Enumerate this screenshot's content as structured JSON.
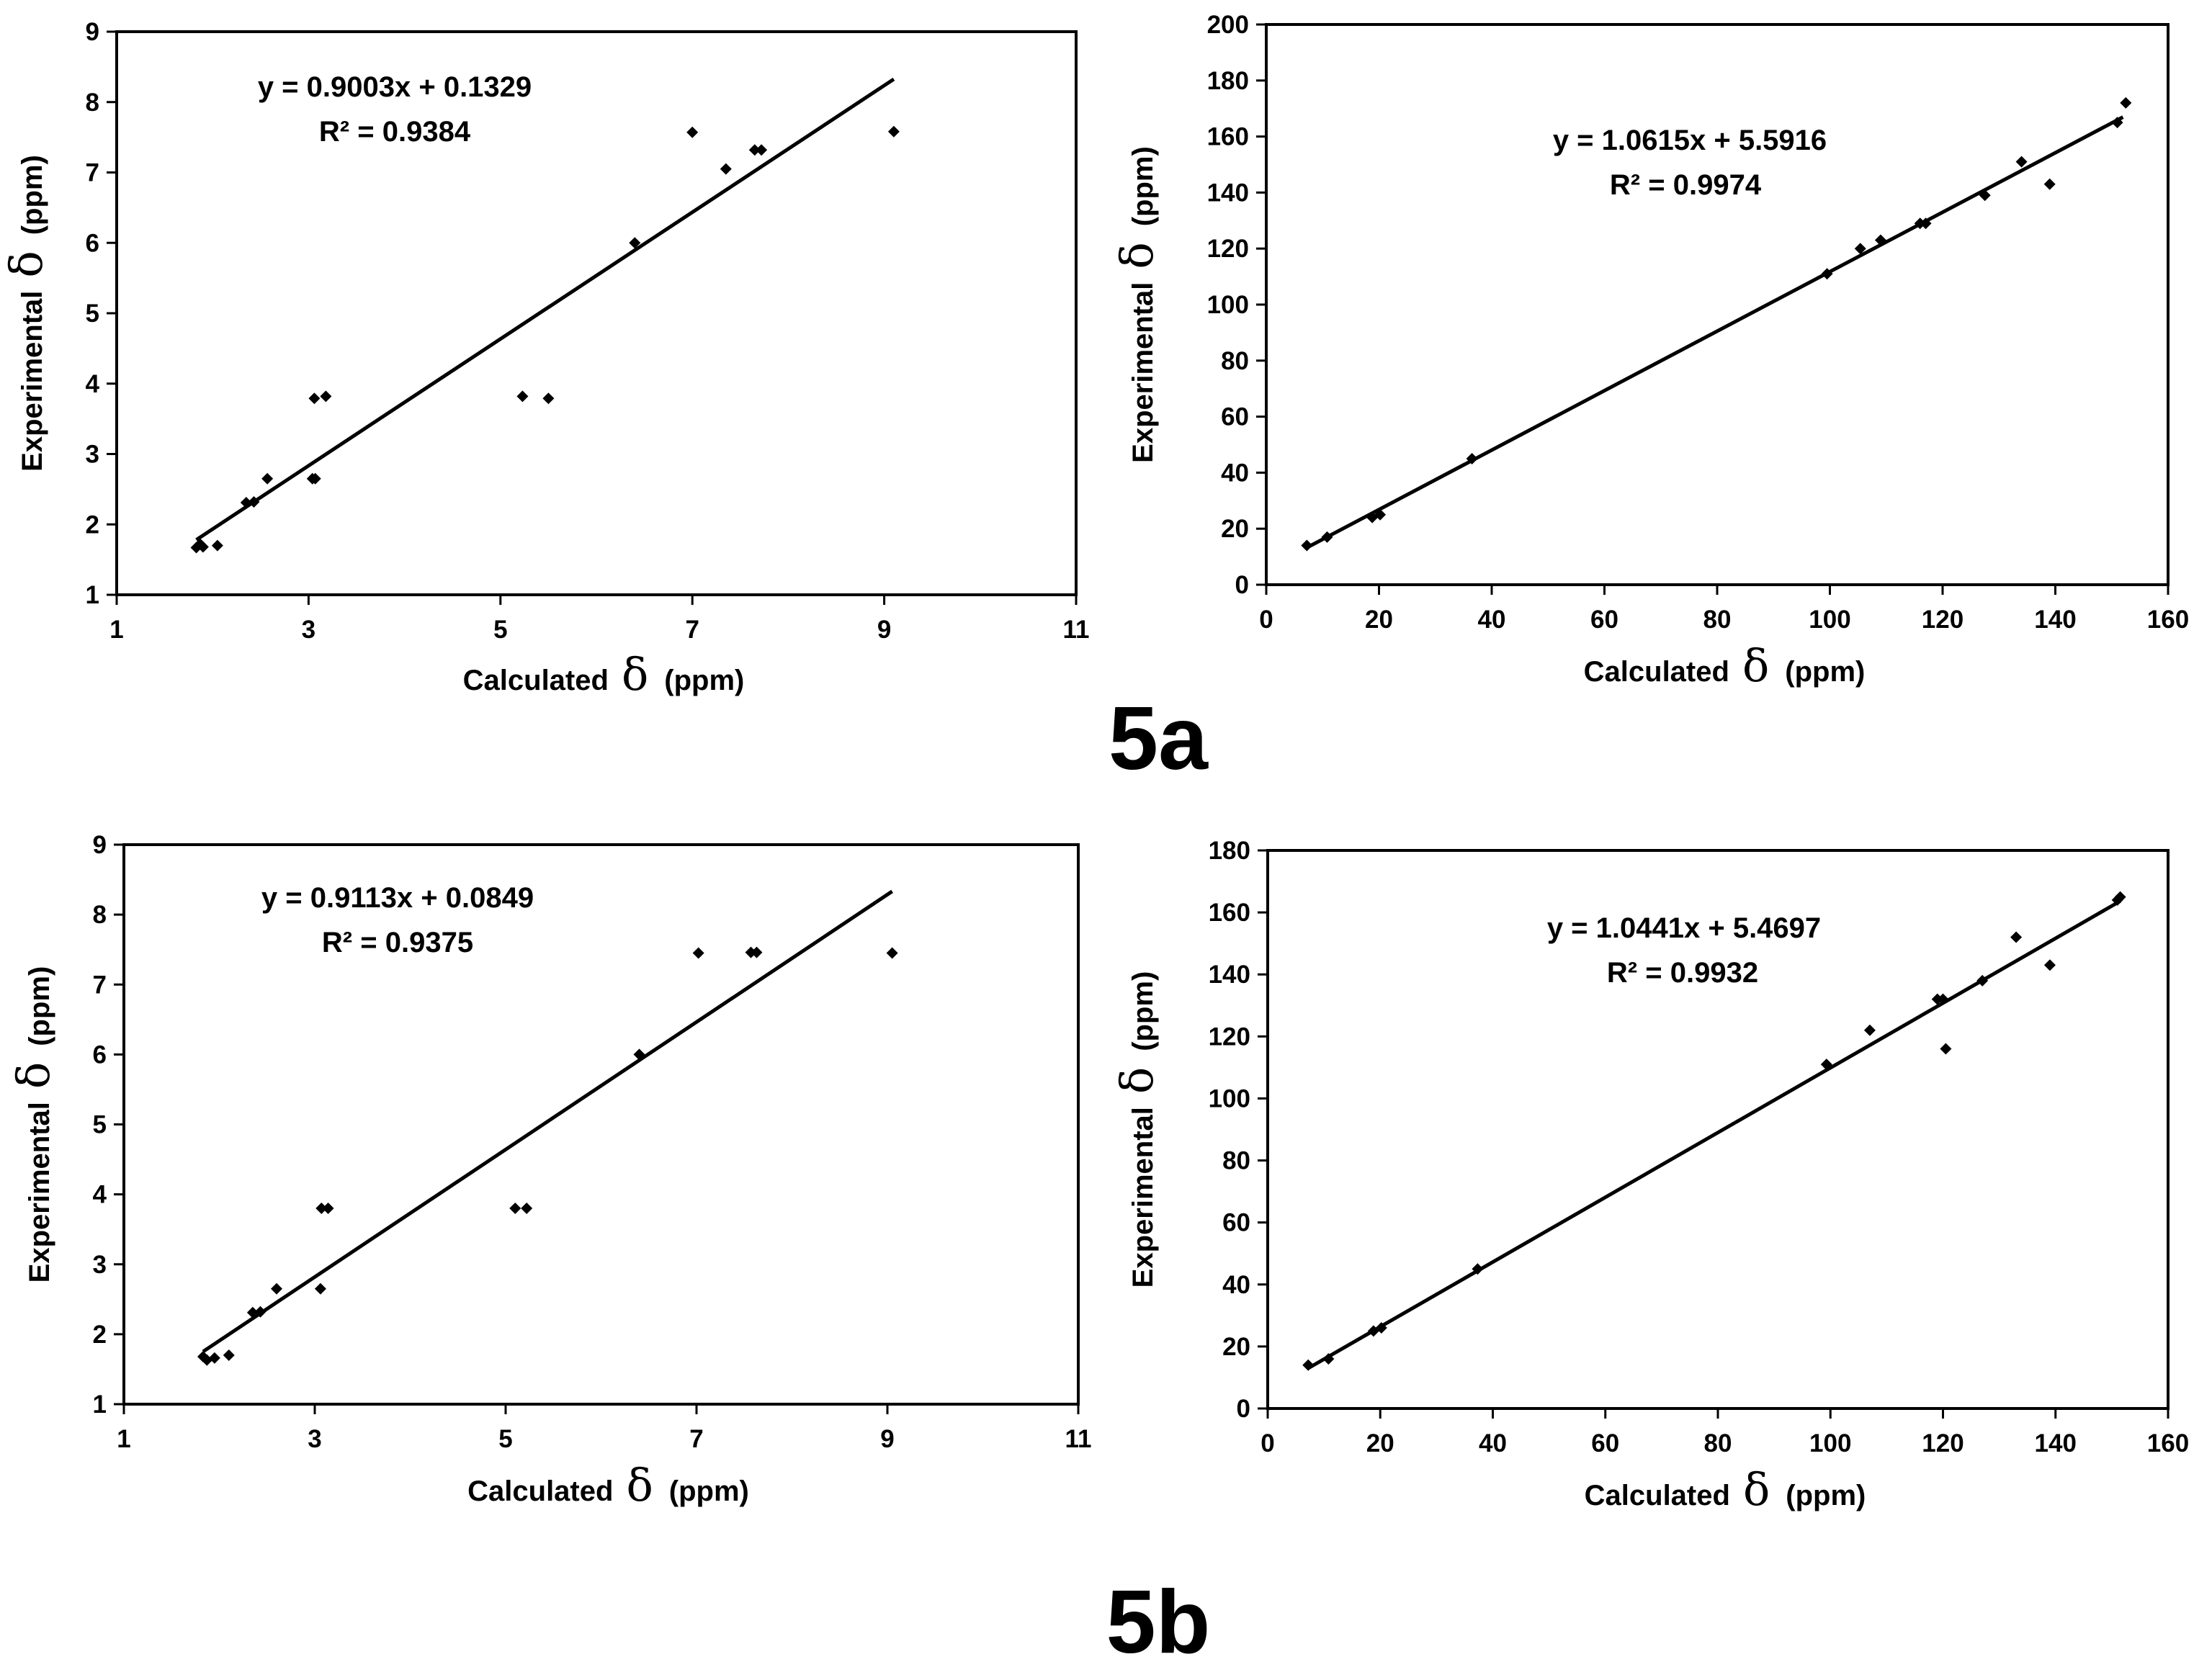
{
  "figure_labels": {
    "top": "5a",
    "bottom": "5b"
  },
  "chart_data": [
    {
      "id": "5a-H",
      "type": "scatter",
      "xlabel": "Calculated",
      "ylabel": "Experimental",
      "axis_symbol": "δ",
      "axis_unit": "(ppm)",
      "xlim": [
        1,
        11
      ],
      "ylim": [
        1,
        9
      ],
      "xticks": [
        1,
        3,
        5,
        7,
        9,
        11
      ],
      "yticks": [
        1,
        2,
        3,
        4,
        5,
        6,
        7,
        8,
        9
      ],
      "equation": "y = 0.9003x + 0.1329",
      "r2_label": "R² = 0.9384",
      "trendline": {
        "slope": 0.9003,
        "intercept": 0.1329,
        "x_range": [
          1.83,
          9.1
        ]
      },
      "points": [
        [
          1.83,
          1.67
        ],
        [
          1.87,
          1.72
        ],
        [
          1.9,
          1.68
        ],
        [
          2.05,
          1.7
        ],
        [
          2.35,
          2.31
        ],
        [
          2.43,
          2.32
        ],
        [
          2.57,
          2.65
        ],
        [
          3.04,
          2.65
        ],
        [
          3.07,
          2.65
        ],
        [
          3.06,
          3.79
        ],
        [
          3.18,
          3.82
        ],
        [
          5.23,
          3.82
        ],
        [
          5.5,
          3.79
        ],
        [
          6.4,
          6.0
        ],
        [
          7.0,
          7.57
        ],
        [
          7.35,
          7.05
        ],
        [
          7.65,
          7.32
        ],
        [
          7.72,
          7.32
        ],
        [
          9.1,
          7.58
        ]
      ]
    },
    {
      "id": "5a-C",
      "type": "scatter",
      "xlabel": "Calculated",
      "ylabel": "Experimental",
      "axis_symbol": "δ",
      "axis_unit": "(ppm)",
      "xlim": [
        0,
        160
      ],
      "ylim": [
        0,
        200
      ],
      "xticks": [
        0,
        20,
        40,
        60,
        80,
        100,
        120,
        140,
        160
      ],
      "yticks": [
        0,
        20,
        40,
        60,
        80,
        100,
        120,
        140,
        160,
        180,
        200
      ],
      "equation": "y = 1.0615x + 5.5916",
      "r2_label": "R² = 0.9974",
      "trendline": {
        "slope": 1.0615,
        "intercept": 5.5916,
        "x_range": [
          7,
          152
        ]
      },
      "points": [
        [
          7.2,
          14
        ],
        [
          10.8,
          17
        ],
        [
          18.8,
          24
        ],
        [
          20.2,
          25
        ],
        [
          36.5,
          45
        ],
        [
          99.5,
          111
        ],
        [
          105.4,
          120
        ],
        [
          109,
          123
        ],
        [
          116,
          129
        ],
        [
          117,
          129
        ],
        [
          127.5,
          139
        ],
        [
          134,
          151
        ],
        [
          139,
          143
        ],
        [
          151,
          165
        ],
        [
          152.5,
          172
        ]
      ]
    },
    {
      "id": "5b-H",
      "type": "scatter",
      "xlabel": "Calculated",
      "ylabel": "Experimental",
      "axis_symbol": "δ",
      "axis_unit": "(ppm)",
      "xlim": [
        1,
        11
      ],
      "ylim": [
        1,
        9
      ],
      "xticks": [
        1,
        3,
        5,
        7,
        9,
        11
      ],
      "yticks": [
        1,
        2,
        3,
        4,
        5,
        6,
        7,
        8,
        9
      ],
      "equation": "y = 0.9113x + 0.0849",
      "r2_label": "R² = 0.9375",
      "trendline": {
        "slope": 0.9113,
        "intercept": 0.0849,
        "x_range": [
          1.83,
          9.05
        ]
      },
      "points": [
        [
          1.83,
          1.68
        ],
        [
          1.87,
          1.63
        ],
        [
          1.95,
          1.66
        ],
        [
          2.1,
          1.7
        ],
        [
          2.35,
          2.31
        ],
        [
          2.43,
          2.32
        ],
        [
          2.6,
          2.65
        ],
        [
          3.06,
          2.65
        ],
        [
          3.07,
          3.8
        ],
        [
          3.14,
          3.8
        ],
        [
          5.1,
          3.8
        ],
        [
          5.22,
          3.8
        ],
        [
          6.4,
          6.0
        ],
        [
          7.02,
          7.45
        ],
        [
          7.57,
          7.46
        ],
        [
          7.63,
          7.46
        ],
        [
          9.05,
          7.45
        ]
      ]
    },
    {
      "id": "5b-C",
      "type": "scatter",
      "xlabel": "Calculated",
      "ylabel": "Experimental",
      "axis_symbol": "δ",
      "axis_unit": "(ppm)",
      "xlim": [
        0,
        160
      ],
      "ylim": [
        0,
        180
      ],
      "xticks": [
        0,
        20,
        40,
        60,
        80,
        100,
        120,
        140,
        160
      ],
      "yticks": [
        0,
        20,
        40,
        60,
        80,
        100,
        120,
        140,
        160,
        180
      ],
      "equation": "y = 1.0441x + 5.4697",
      "r2_label": "R² = 0.9932",
      "trendline": {
        "slope": 1.0441,
        "intercept": 5.4697,
        "x_range": [
          7,
          151.5
        ]
      },
      "points": [
        [
          7.2,
          14
        ],
        [
          10.8,
          16
        ],
        [
          18.8,
          25
        ],
        [
          20.2,
          26
        ],
        [
          37.3,
          45
        ],
        [
          99.3,
          111
        ],
        [
          107,
          122
        ],
        [
          119,
          132
        ],
        [
          120,
          132
        ],
        [
          120.5,
          116
        ],
        [
          127,
          138
        ],
        [
          133,
          152
        ],
        [
          139,
          143
        ],
        [
          151,
          164
        ],
        [
          151.5,
          165
        ]
      ]
    }
  ]
}
